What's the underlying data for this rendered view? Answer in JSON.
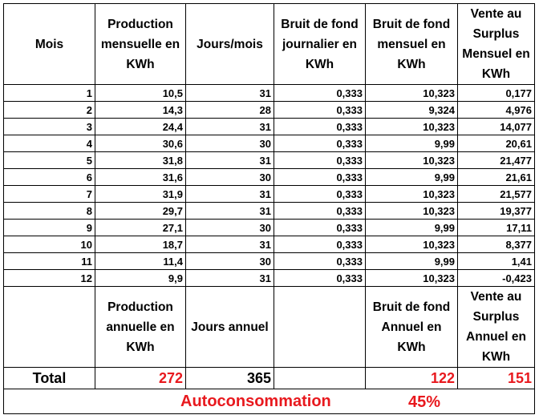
{
  "header": {
    "mois": "Mois",
    "production": "Production mensuelle en KWh",
    "jours": "Jours/mois",
    "bruit_journalier": "Bruit de fond journalier en KWh",
    "bruit_mensuel": "Bruit de fond mensuel en KWh",
    "vente_mensuel": "Vente au Surplus Mensuel en KWh"
  },
  "rows": [
    {
      "mois": "1",
      "production": "10,5",
      "jours": "31",
      "bruit_journalier": "0,333",
      "bruit_mensuel": "10,323",
      "vente": "0,177"
    },
    {
      "mois": "2",
      "production": "14,3",
      "jours": "28",
      "bruit_journalier": "0,333",
      "bruit_mensuel": "9,324",
      "vente": "4,976"
    },
    {
      "mois": "3",
      "production": "24,4",
      "jours": "31",
      "bruit_journalier": "0,333",
      "bruit_mensuel": "10,323",
      "vente": "14,077"
    },
    {
      "mois": "4",
      "production": "30,6",
      "jours": "30",
      "bruit_journalier": "0,333",
      "bruit_mensuel": "9,99",
      "vente": "20,61"
    },
    {
      "mois": "5",
      "production": "31,8",
      "jours": "31",
      "bruit_journalier": "0,333",
      "bruit_mensuel": "10,323",
      "vente": "21,477"
    },
    {
      "mois": "6",
      "production": "31,6",
      "jours": "30",
      "bruit_journalier": "0,333",
      "bruit_mensuel": "9,99",
      "vente": "21,61"
    },
    {
      "mois": "7",
      "production": "31,9",
      "jours": "31",
      "bruit_journalier": "0,333",
      "bruit_mensuel": "10,323",
      "vente": "21,577"
    },
    {
      "mois": "8",
      "production": "29,7",
      "jours": "31",
      "bruit_journalier": "0,333",
      "bruit_mensuel": "10,323",
      "vente": "19,377"
    },
    {
      "mois": "9",
      "production": "27,1",
      "jours": "30",
      "bruit_journalier": "0,333",
      "bruit_mensuel": "9,99",
      "vente": "17,11"
    },
    {
      "mois": "10",
      "production": "18,7",
      "jours": "31",
      "bruit_journalier": "0,333",
      "bruit_mensuel": "10,323",
      "vente": "8,377"
    },
    {
      "mois": "11",
      "production": "11,4",
      "jours": "30",
      "bruit_journalier": "0,333",
      "bruit_mensuel": "9,99",
      "vente": "1,41"
    },
    {
      "mois": "12",
      "production": "9,9",
      "jours": "31",
      "bruit_journalier": "0,333",
      "bruit_mensuel": "10,323",
      "vente": "-0,423"
    }
  ],
  "annual_header": {
    "production": "Production annuelle en KWh",
    "jours": "Jours annuel",
    "bruit": "Bruit de fond Annuel en KWh",
    "vente": "Vente au Surplus Annuel en KWh"
  },
  "total": {
    "label": "Total",
    "production": "272",
    "jours": "365",
    "bruit": "122",
    "vente": "151"
  },
  "autoconsommation": {
    "label": "Autoconsommation",
    "value": "45%"
  },
  "colors": {
    "highlight": "#e8191e",
    "border": "#000000"
  }
}
